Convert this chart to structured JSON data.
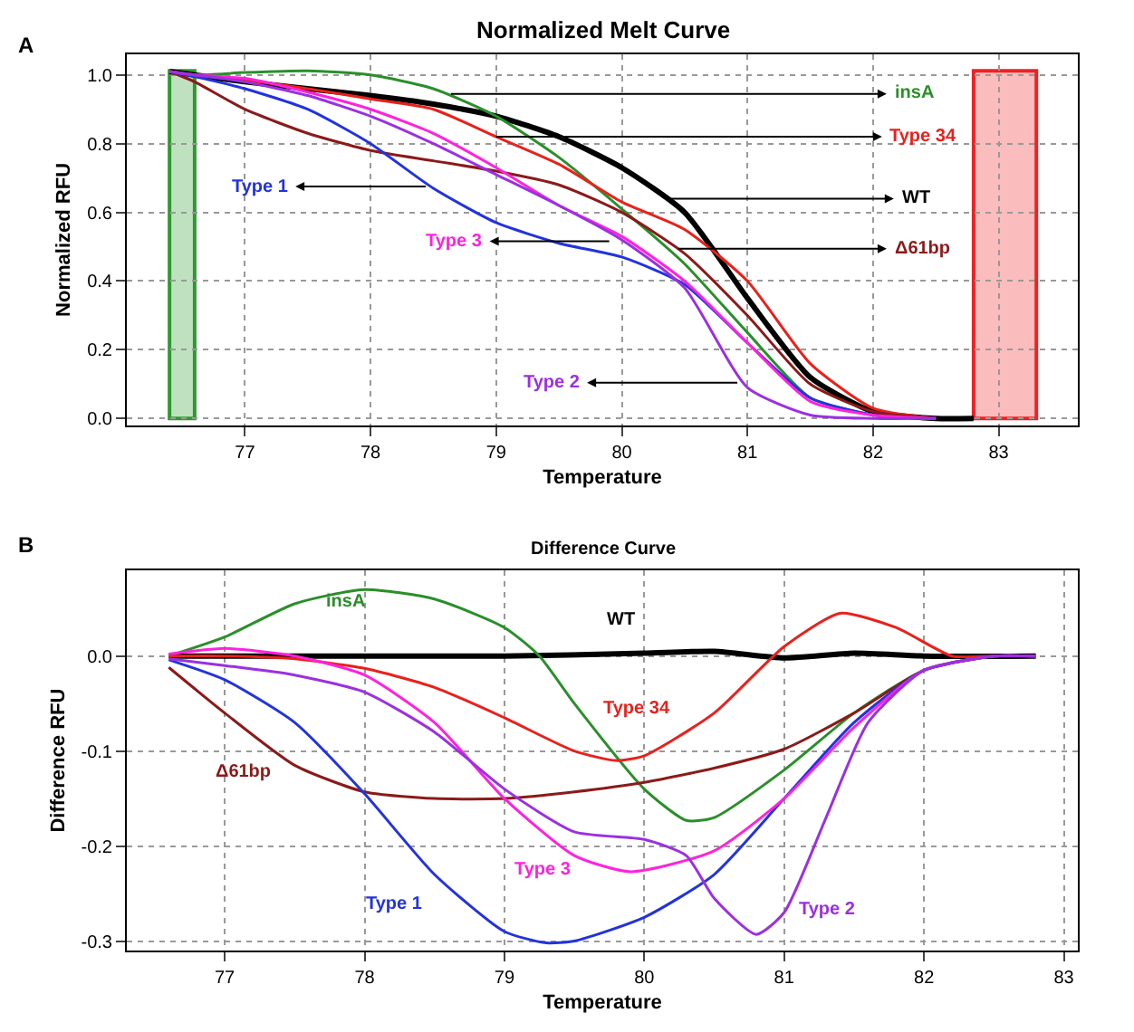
{
  "chart_data": [
    {
      "type": "line",
      "title": "Normalized Melt Curve",
      "xlabel": "Temperature",
      "ylabel": "Normalized RFU",
      "xlim": [
        76.06,
        83.63
      ],
      "ylim": [
        -0.02,
        1.06
      ],
      "xticks": [
        77,
        78,
        79,
        80,
        81,
        82,
        83
      ],
      "yticks": [
        {
          "value": 0,
          "label": "0.0"
        },
        {
          "value": 0.2,
          "label": "0.2"
        },
        {
          "value": 0.4,
          "label": "0.4"
        },
        {
          "value": 0.6,
          "label": "0.6"
        },
        {
          "value": 0.8,
          "label": "0.8"
        },
        {
          "value": 1,
          "label": "1.0"
        }
      ],
      "grid": true,
      "bands": [
        {
          "axis": "x",
          "from": 76.4,
          "to": 76.6,
          "color": "#2e9a2e"
        },
        {
          "axis": "x",
          "from": 82.8,
          "to": 83.3,
          "color": "#ee2222"
        }
      ],
      "series": [
        {
          "color": "#2a8f2a",
          "x": [
            76.4,
            76.6,
            77,
            77.5,
            78,
            78.5,
            79,
            79.5,
            80,
            80.5,
            81,
            81.5,
            82
          ],
          "values": [
            1.01,
            1.0,
            1.007,
            1.012,
            1.0,
            0.96,
            0.88,
            0.76,
            0.61,
            0.45,
            0.25,
            0.06,
            0.01
          ]
        },
        {
          "color": "#e8211c",
          "x": [
            76.4,
            76.6,
            77,
            77.5,
            78,
            78.5,
            79,
            79.5,
            80,
            80.5,
            81,
            81.5,
            82,
            82.5
          ],
          "values": [
            1.01,
            1.0,
            0.985,
            0.96,
            0.93,
            0.9,
            0.82,
            0.74,
            0.63,
            0.55,
            0.4,
            0.16,
            0.03,
            0.0
          ]
        },
        {
          "color": "#000000",
          "x": [
            76.4,
            76.6,
            77,
            77.5,
            78,
            78.5,
            79,
            79.5,
            80,
            80.5,
            81,
            81.5,
            82,
            82.5,
            82.8
          ],
          "values": [
            1.01,
            1.0,
            0.98,
            0.96,
            0.94,
            0.915,
            0.88,
            0.82,
            0.73,
            0.6,
            0.35,
            0.12,
            0.02,
            0.0,
            0.0
          ]
        },
        {
          "color": "#8b1a1a",
          "x": [
            76.4,
            76.6,
            77,
            77.5,
            78,
            78.5,
            79,
            79.5,
            80,
            80.5,
            81,
            81.5,
            82,
            82.5
          ],
          "values": [
            1.01,
            0.98,
            0.9,
            0.83,
            0.78,
            0.75,
            0.72,
            0.68,
            0.6,
            0.48,
            0.3,
            0.1,
            0.02,
            0.0
          ]
        },
        {
          "color": "#2233dd",
          "x": [
            76.4,
            76.6,
            77,
            77.5,
            78,
            78.5,
            79,
            79.5,
            80,
            80.5,
            81,
            81.5,
            82,
            82.5
          ],
          "values": [
            1.01,
            0.995,
            0.96,
            0.9,
            0.8,
            0.67,
            0.57,
            0.51,
            0.47,
            0.39,
            0.22,
            0.06,
            0.01,
            0.0
          ]
        },
        {
          "color": "#ff22dd",
          "x": [
            76.4,
            76.6,
            77,
            77.5,
            78,
            78.5,
            79,
            79.5,
            80,
            80.5,
            81,
            81.5,
            82,
            82.5
          ],
          "values": [
            1.01,
            1.0,
            0.99,
            0.95,
            0.9,
            0.83,
            0.73,
            0.62,
            0.53,
            0.4,
            0.22,
            0.05,
            0.01,
            0.0
          ]
        },
        {
          "color": "#9b30e0",
          "x": [
            76.4,
            76.6,
            77,
            77.5,
            78,
            78.5,
            79,
            79.5,
            80,
            80.5,
            81,
            81.5,
            82,
            82.5
          ],
          "values": [
            1.01,
            1.0,
            0.98,
            0.94,
            0.88,
            0.8,
            0.71,
            0.62,
            0.52,
            0.38,
            0.09,
            0.01,
            0.0,
            0.0
          ]
        }
      ],
      "annotations": [
        "A",
        {
          "text": "insA",
          "x": 78.64,
          "y": 0.945
        },
        {
          "text": "Type 34",
          "x": 79.0,
          "y": 0.82
        },
        {
          "text": "WT",
          "x": 80.37,
          "y": 0.64
        },
        {
          "text": "Δ61bp",
          "x": 80.45,
          "y": 0.494
        },
        {
          "text": "Type 1",
          "x": 78.44,
          "y": 0.675
        },
        {
          "text": "Type 3",
          "x": 79.9,
          "y": 0.516
        },
        {
          "text": "Type 2",
          "x": 80.92,
          "y": 0.104
        }
      ]
    },
    {
      "type": "line",
      "title": "Difference Curve",
      "xlabel": "Temperature",
      "ylabel": "Difference RFU",
      "xlim": [
        76.3,
        83.1
      ],
      "ylim": [
        -0.31,
        0.09
      ],
      "xticks": [
        77,
        78,
        79,
        80,
        81,
        82,
        83
      ],
      "yticks": [
        {
          "value": -0.3,
          "label": "-0.3"
        },
        {
          "value": -0.2,
          "label": "-0.2"
        },
        {
          "value": -0.1,
          "label": "-0.1"
        },
        {
          "value": 0,
          "label": "0.0"
        }
      ],
      "grid": true,
      "series": [
        {
          "color": "#2a8f2a",
          "x": [
            76.6,
            77,
            77.5,
            78,
            78.5,
            79,
            79.25,
            79.5,
            80,
            80.3,
            80.5,
            81,
            81.5,
            82,
            82.5,
            82.8
          ],
          "values": [
            0.0,
            0.02,
            0.055,
            0.07,
            0.06,
            0.03,
            0.0,
            -0.05,
            -0.14,
            -0.173,
            -0.17,
            -0.12,
            -0.06,
            -0.015,
            0.0,
            0.0
          ]
        },
        {
          "color": "#e8211c",
          "x": [
            76.6,
            77,
            77.5,
            78,
            78.5,
            79,
            79.5,
            79.8,
            80,
            80.5,
            81,
            81.4,
            81.8,
            82.2,
            82.5,
            82.8
          ],
          "values": [
            0.0,
            0.0,
            -0.003,
            -0.013,
            -0.033,
            -0.065,
            -0.1,
            -0.11,
            -0.105,
            -0.06,
            0.01,
            0.045,
            0.03,
            0.0,
            0.0,
            0.0
          ]
        },
        {
          "color": "#000000",
          "x": [
            76.6,
            79,
            80,
            80.5,
            81,
            81.5,
            82,
            82.8
          ],
          "values": [
            0.0,
            0.0,
            0.003,
            0.005,
            -0.002,
            0.003,
            0.0,
            0.0
          ]
        },
        {
          "color": "#8b1a1a",
          "x": [
            76.6,
            77,
            77.5,
            78,
            78.5,
            79,
            79.5,
            80,
            80.5,
            81,
            81.5,
            82,
            82.5,
            82.8
          ],
          "values": [
            -0.012,
            -0.06,
            -0.115,
            -0.143,
            -0.15,
            -0.15,
            -0.143,
            -0.133,
            -0.118,
            -0.098,
            -0.06,
            -0.015,
            0.0,
            0.0
          ]
        },
        {
          "color": "#2233dd",
          "x": [
            76.6,
            77,
            77.5,
            78,
            78.5,
            79,
            79.3,
            79.5,
            80,
            80.5,
            81,
            81.5,
            82,
            82.5,
            82.8
          ],
          "values": [
            -0.004,
            -0.025,
            -0.07,
            -0.145,
            -0.23,
            -0.29,
            -0.302,
            -0.3,
            -0.275,
            -0.23,
            -0.15,
            -0.07,
            -0.015,
            0.0,
            0.0
          ]
        },
        {
          "color": "#ff22dd",
          "x": [
            76.6,
            77,
            77.5,
            78,
            78.5,
            79,
            79.5,
            79.9,
            80.5,
            81,
            81.5,
            82,
            82.5,
            82.8
          ],
          "values": [
            0.002,
            0.008,
            0.0,
            -0.02,
            -0.07,
            -0.15,
            -0.21,
            -0.227,
            -0.205,
            -0.15,
            -0.075,
            -0.015,
            0.0,
            0.0
          ]
        },
        {
          "color": "#9b30e0",
          "x": [
            76.6,
            77,
            77.5,
            78,
            78.5,
            79,
            79.5,
            80,
            80.3,
            80.5,
            80.8,
            81,
            81.3,
            81.6,
            82,
            82.5,
            82.8
          ],
          "values": [
            -0.003,
            -0.01,
            -0.02,
            -0.038,
            -0.08,
            -0.14,
            -0.185,
            -0.193,
            -0.21,
            -0.255,
            -0.293,
            -0.27,
            -0.17,
            -0.07,
            -0.015,
            0.0,
            0.0
          ]
        }
      ],
      "annotations": [
        "B",
        {
          "text": "insA",
          "x": 77.87,
          "y": 0.068
        },
        {
          "text": "Type 34",
          "x": 79.94,
          "y": -0.107
        },
        {
          "text": "WT",
          "x": 79.83,
          "y": 0.003
        },
        {
          "text": "Δ61bp",
          "x": 77.14,
          "y": -0.075
        },
        {
          "text": "Type 1",
          "x": 78.6,
          "y": -0.245
        },
        {
          "text": "Type 3",
          "x": 79.27,
          "y": -0.182
        },
        {
          "text": "Type 2",
          "x": 81.05,
          "y": -0.253
        }
      ]
    }
  ]
}
